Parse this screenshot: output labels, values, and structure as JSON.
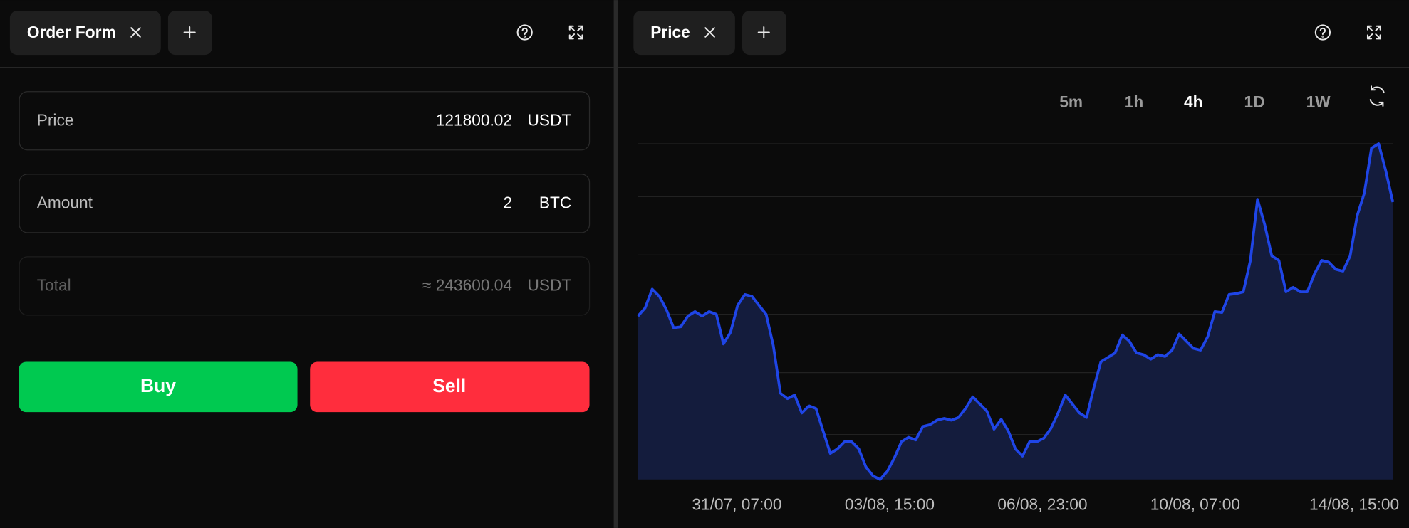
{
  "order_form": {
    "tab": "Order Form",
    "fields": [
      {
        "label": "Price",
        "value": "121800.02",
        "unit": "USDT"
      },
      {
        "label": "Amount",
        "value": "2",
        "unit": "BTC"
      },
      {
        "label": "Total",
        "value": "≈ 243600.04",
        "unit": "USDT"
      }
    ],
    "buttons": [
      "Buy",
      "Sell"
    ]
  },
  "price_panel": {
    "tab": "Price",
    "timeframes": [
      "5m",
      "1h",
      "4h",
      "1D",
      "1W"
    ],
    "active_timeframe": 2
  },
  "chart_data": {
    "type": "area",
    "color": "#1f45e6",
    "fill": "#141c3d",
    "x_labels": [
      "31/07, 07:00",
      "03/08, 15:00",
      "06/08, 23:00",
      "10/08, 07:00",
      "14/08, 15:00"
    ],
    "values": [
      182,
      191,
      212,
      204,
      189,
      169,
      170,
      182,
      187,
      182,
      187,
      184,
      151,
      164,
      194,
      206,
      204,
      194,
      184,
      149,
      96,
      90,
      94,
      74,
      82,
      79,
      54,
      29,
      34,
      42,
      42,
      34,
      14,
      4,
      0,
      9,
      24,
      42,
      47,
      44,
      59,
      61,
      66,
      68,
      66,
      69,
      79,
      92,
      84,
      76,
      56,
      67,
      54,
      34,
      26,
      42,
      42,
      46,
      57,
      74,
      94,
      84,
      74,
      69,
      102,
      131,
      136,
      141,
      161,
      154,
      141,
      139,
      134,
      139,
      137,
      144,
      162,
      154,
      146,
      144,
      159,
      187,
      186,
      206,
      207,
      209,
      244,
      312,
      284,
      249,
      244,
      209,
      214,
      209,
      209,
      229,
      244,
      242,
      234,
      232,
      249,
      294,
      319,
      369,
      374,
      344,
      309
    ],
    "ylim": [
      0,
      374
    ],
    "gridlines": [
      50,
      119,
      184,
      250,
      315,
      374
    ],
    "grid": true
  }
}
